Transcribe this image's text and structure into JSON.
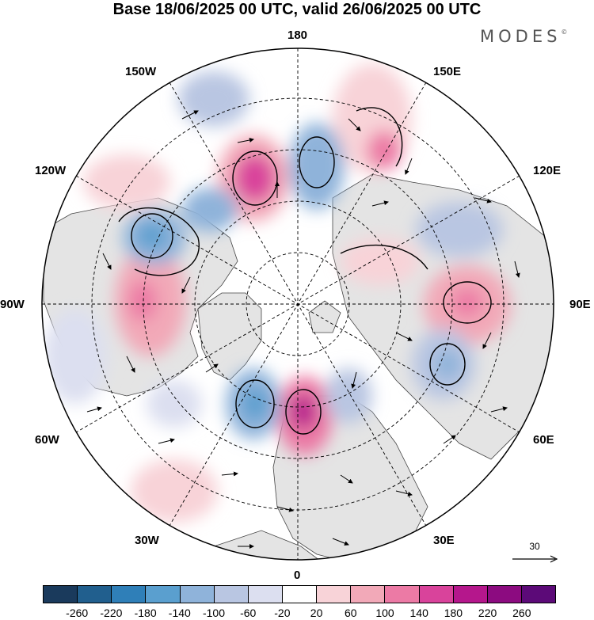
{
  "title": "Base 18/06/2025 00 UTC, valid 26/06/2025 00 UTC",
  "brand": {
    "name": "MODES",
    "mark": "©"
  },
  "meridian_labels": {
    "n180": "180",
    "w150": "150W",
    "e150": "150E",
    "w120": "120W",
    "e120": "120E",
    "w90": "90W",
    "e90": "90E",
    "w60": "60W",
    "e60": "60E",
    "w30": "30W",
    "e30": "30E",
    "s0": "0"
  },
  "reference_vector": {
    "value": "30"
  },
  "colorbar": {
    "colors": [
      "#1a3a5c",
      "#215f8e",
      "#2f7fb8",
      "#5a9fcf",
      "#8fb3da",
      "#b9c6e2",
      "#dcdff0",
      "#ffffff",
      "#f8d3d8",
      "#f2a9b8",
      "#ec7aa5",
      "#d9439b",
      "#b5178c",
      "#8c0b80",
      "#5c0a78"
    ],
    "ticks": [
      "-260",
      "-220",
      "-180",
      "-140",
      "-100",
      "-60",
      "-20",
      "20",
      "60",
      "100",
      "140",
      "180",
      "220",
      "260"
    ]
  },
  "colors": {
    "land": "#e6e6e6",
    "ocean": "#ffffff",
    "coast": "#333333",
    "grid": "#000000"
  }
}
